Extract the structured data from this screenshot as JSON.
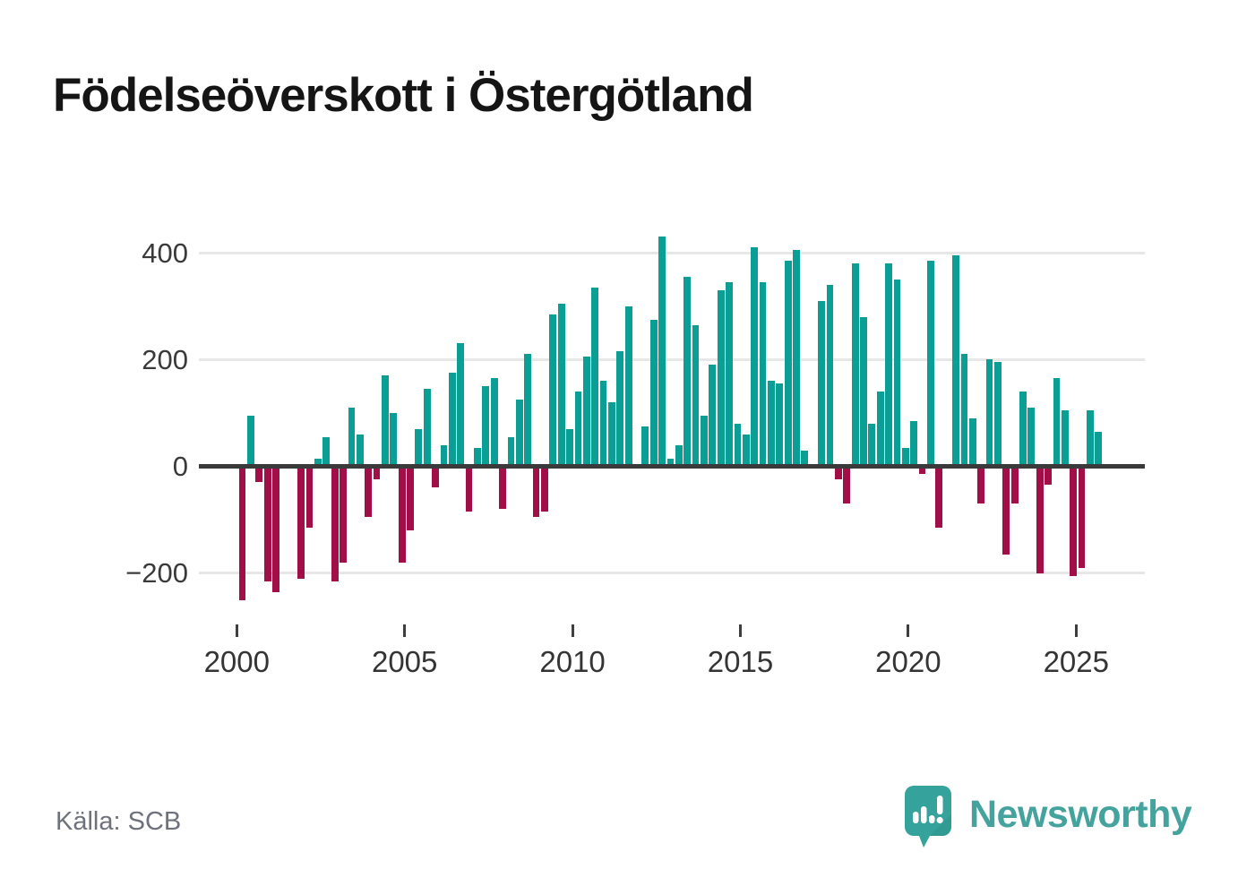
{
  "title": "Födelseöverskott i Östergötland",
  "source": "Källa: SCB",
  "branding": {
    "logo_text": "Newsworthy",
    "logo_color": "#45a39d",
    "bubble_color": "#35a29b",
    "bubble_shade_color": "#2d908a"
  },
  "chart_data": {
    "type": "bar",
    "title": "Födelseöverskott i Östergötland",
    "xlabel": "",
    "ylabel": "",
    "frequency": "quarterly",
    "x_range": [
      "2000Q1",
      "2025Q3"
    ],
    "ylim": [
      -280,
      460
    ],
    "grid": "horizontal",
    "y_tick_values": [
      400,
      200,
      0,
      -200
    ],
    "y_tick_labels": [
      "400",
      "200",
      "0",
      "−200"
    ],
    "x_tick_labels": [
      "2000",
      "2005",
      "2010",
      "2015",
      "2020",
      "2025"
    ],
    "colors": {
      "positive": "#0b9e94",
      "negative": "#a20e48"
    },
    "categories": [
      "2000Q1",
      "2000Q2",
      "2000Q3",
      "2000Q4",
      "2001Q1",
      "2001Q2",
      "2001Q3",
      "2001Q4",
      "2002Q1",
      "2002Q2",
      "2002Q3",
      "2002Q4",
      "2003Q1",
      "2003Q2",
      "2003Q3",
      "2003Q4",
      "2004Q1",
      "2004Q2",
      "2004Q3",
      "2004Q4",
      "2005Q1",
      "2005Q2",
      "2005Q3",
      "2005Q4",
      "2006Q1",
      "2006Q2",
      "2006Q3",
      "2006Q4",
      "2007Q1",
      "2007Q2",
      "2007Q3",
      "2007Q4",
      "2008Q1",
      "2008Q2",
      "2008Q3",
      "2008Q4",
      "2009Q1",
      "2009Q2",
      "2009Q3",
      "2009Q4",
      "2010Q1",
      "2010Q2",
      "2010Q3",
      "2010Q4",
      "2011Q1",
      "2011Q2",
      "2011Q3",
      "2011Q4",
      "2012Q1",
      "2012Q2",
      "2012Q3",
      "2012Q4",
      "2013Q1",
      "2013Q2",
      "2013Q3",
      "2013Q4",
      "2014Q1",
      "2014Q2",
      "2014Q3",
      "2014Q4",
      "2015Q1",
      "2015Q2",
      "2015Q3",
      "2015Q4",
      "2016Q1",
      "2016Q2",
      "2016Q3",
      "2016Q4",
      "2017Q1",
      "2017Q2",
      "2017Q3",
      "2017Q4",
      "2018Q1",
      "2018Q2",
      "2018Q3",
      "2018Q4",
      "2019Q1",
      "2019Q2",
      "2019Q3",
      "2019Q4",
      "2020Q1",
      "2020Q2",
      "2020Q3",
      "2020Q4",
      "2021Q1",
      "2021Q2",
      "2021Q3",
      "2021Q4",
      "2022Q1",
      "2022Q2",
      "2022Q3",
      "2022Q4",
      "2023Q1",
      "2023Q2",
      "2023Q3",
      "2023Q4",
      "2024Q1",
      "2024Q2",
      "2024Q3",
      "2024Q4",
      "2025Q1",
      "2025Q2",
      "2025Q3"
    ],
    "values": [
      -250,
      95,
      -30,
      -215,
      -235,
      0,
      0,
      -210,
      -115,
      15,
      55,
      -215,
      -180,
      110,
      60,
      -95,
      -25,
      170,
      100,
      -180,
      -120,
      70,
      145,
      -40,
      40,
      175,
      230,
      -85,
      35,
      150,
      165,
      -80,
      55,
      125,
      210,
      -95,
      -85,
      285,
      305,
      70,
      140,
      205,
      335,
      160,
      120,
      215,
      300,
      5,
      75,
      275,
      430,
      15,
      40,
      355,
      265,
      95,
      190,
      330,
      345,
      80,
      60,
      410,
      345,
      160,
      155,
      385,
      405,
      30,
      5,
      310,
      340,
      -25,
      -70,
      380,
      280,
      80,
      140,
      380,
      350,
      35,
      85,
      -15,
      385,
      -115,
      0,
      395,
      210,
      90,
      -70,
      200,
      195,
      -165,
      -70,
      140,
      110,
      -200,
      -35,
      165,
      105,
      -205,
      -190,
      105,
      65
    ]
  }
}
